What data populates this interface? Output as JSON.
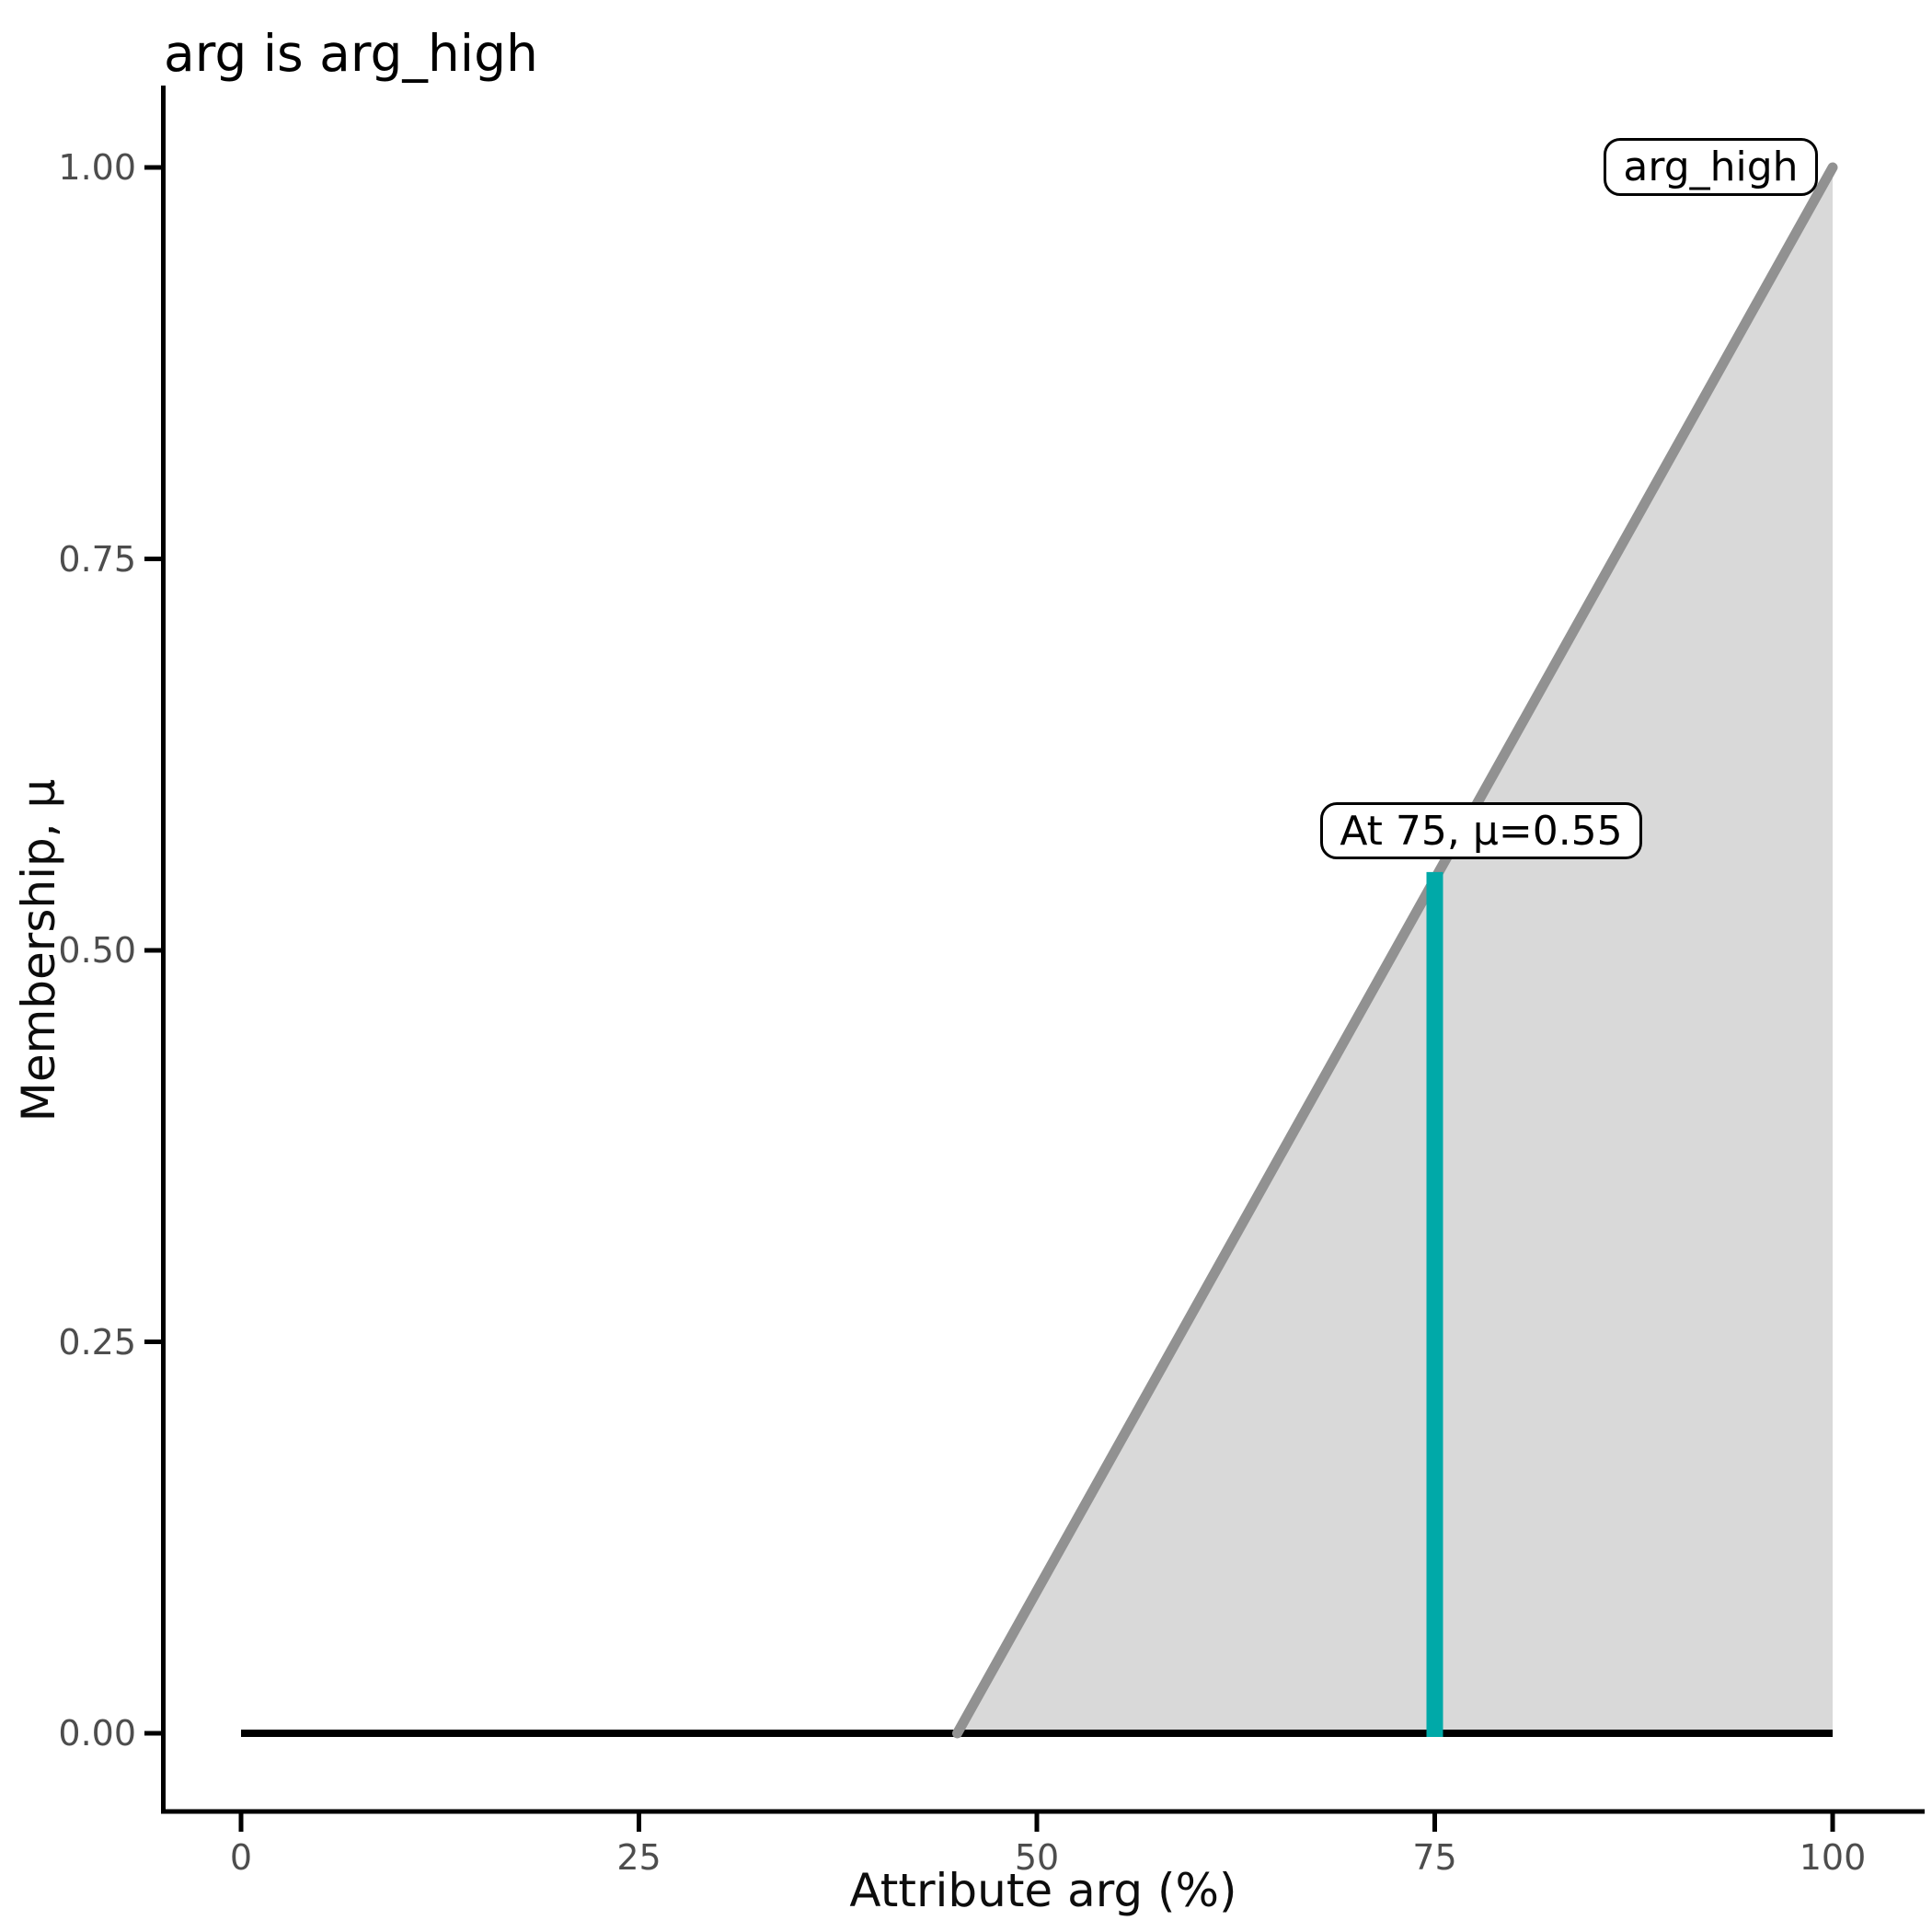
{
  "page": {
    "title": "arg is arg_high"
  },
  "colors": {
    "background": "#ffffff",
    "axis_line": "#000000",
    "tick_label": "#4d4d4d",
    "membership_line": "#919191",
    "membership_fill": "#d9d9d9",
    "baseline": "#000000",
    "query_line": "#00a9a8",
    "annotation_border": "#000000",
    "annotation_bg": "#ffffff",
    "text": "#000000"
  },
  "chart_data": {
    "type": "area",
    "title": "arg is arg_high",
    "xlabel": "Attribute arg (%)",
    "ylabel": "Membership, μ",
    "xlim": [
      0,
      100
    ],
    "ylim": [
      0,
      1
    ],
    "grid": false,
    "legend_position": "none",
    "x_ticks": {
      "values": [
        0,
        25,
        50,
        75,
        100
      ],
      "labels": [
        "0",
        "25",
        "50",
        "75",
        "100"
      ]
    },
    "y_ticks": {
      "values": [
        0,
        0.25,
        0.5,
        0.75,
        1.0
      ],
      "labels": [
        "0.00",
        "0.25",
        "0.50",
        "0.75",
        "1.00"
      ]
    },
    "series": [
      {
        "name": "universe-baseline",
        "kind": "line",
        "color": "#000000",
        "width": 8,
        "x": [
          0,
          100
        ],
        "y": [
          0,
          0
        ]
      },
      {
        "name": "arg_high",
        "kind": "area",
        "line_color": "#919191",
        "fill_color": "#d9d9d9",
        "line_width": 11,
        "x": [
          45,
          100
        ],
        "y": [
          0,
          1
        ],
        "description": "membership 0 up to 45, linear ramp to 1 at 100"
      },
      {
        "name": "query-cut",
        "kind": "vline",
        "color": "#00a9a8",
        "width": 18,
        "x": 75,
        "y0": 0,
        "y1": 0.55
      }
    ],
    "annotations": [
      {
        "id": "query-label",
        "text": "At 75, μ=0.55",
        "x": 75,
        "y": 0.55
      },
      {
        "id": "set-label",
        "text": "arg_high",
        "x": 88,
        "y": 1.0
      }
    ]
  }
}
